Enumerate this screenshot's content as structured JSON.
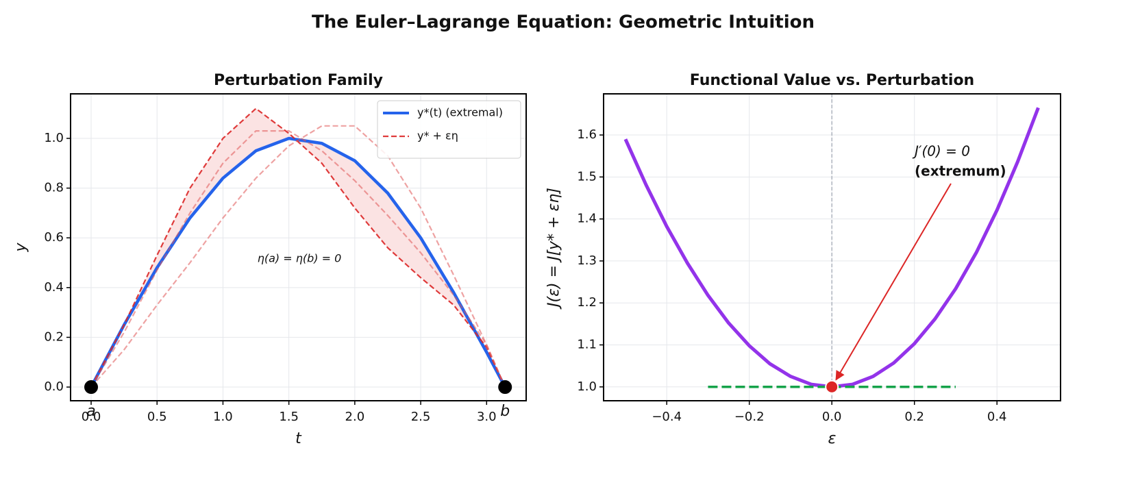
{
  "title": "The Euler–Lagrange Equation: Geometric Intuition",
  "chart_data": [
    {
      "type": "line",
      "title": "Perturbation Family",
      "xlabel": "t",
      "ylabel": "y",
      "xlim": [
        -0.156,
        3.3
      ],
      "ylim": [
        -0.055,
        1.179
      ],
      "xticks": [
        {
          "value": 0,
          "label": "0.0"
        },
        {
          "value": 0.5,
          "label": "0.5"
        },
        {
          "value": 1,
          "label": "1.0"
        },
        {
          "value": 1.5,
          "label": "1.5"
        },
        {
          "value": 2,
          "label": "2.0"
        },
        {
          "value": 2.5,
          "label": "2.5"
        },
        {
          "value": 3,
          "label": "3.0"
        }
      ],
      "yticks": [
        {
          "value": 0,
          "label": "0.0"
        },
        {
          "value": 0.2,
          "label": "0.2"
        },
        {
          "value": 0.4,
          "label": "0.4"
        },
        {
          "value": 0.6,
          "label": "0.6"
        },
        {
          "value": 0.8,
          "label": "0.8"
        },
        {
          "value": 1,
          "label": "1.0"
        }
      ],
      "grid": true,
      "legend": "upper right",
      "x": [
        0,
        0.25,
        0.5,
        0.75,
        1,
        1.25,
        1.5,
        1.75,
        2,
        2.25,
        2.5,
        2.75,
        3,
        3.14
      ],
      "series": [
        {
          "name": "y*(t) (extremal)",
          "color": "#2563eb",
          "style": "solid",
          "width": 4.5,
          "values": [
            0,
            0.25,
            0.48,
            0.68,
            0.84,
            0.95,
            1.0,
            0.98,
            0.91,
            0.78,
            0.6,
            0.38,
            0.14,
            0
          ]
        },
        {
          "name": "y* + εη",
          "color": "#dc2626",
          "style": "dashed",
          "width": 2.2,
          "opacity": 0.9,
          "fill_color": "#fbe3e3",
          "values": [
            0,
            0.25,
            0.53,
            0.8,
            1.0,
            1.12,
            1.02,
            0.9,
            0.72,
            0.56,
            0.44,
            0.33,
            0.16,
            0
          ]
        },
        {
          "color": "#e05555",
          "style": "dashed",
          "width": 2.2,
          "opacity": 0.55,
          "values": [
            0,
            0.22,
            0.47,
            0.7,
            0.9,
            1.03,
            1.03,
            0.95,
            0.83,
            0.69,
            0.54,
            0.37,
            0.17,
            0
          ]
        },
        {
          "color": "#e05555",
          "style": "dashed",
          "width": 2.2,
          "opacity": 0.55,
          "values": [
            0,
            0.15,
            0.33,
            0.5,
            0.68,
            0.84,
            0.97,
            1.05,
            1.05,
            0.93,
            0.72,
            0.45,
            0.17,
            0
          ]
        },
        {
          "color": "#000000",
          "mode": "markers",
          "x": [
            0,
            3.14
          ],
          "values": [
            0,
            0
          ],
          "point_labels": [
            "a",
            "b"
          ]
        }
      ],
      "annotations": [
        {
          "text": "η(a) = η(b) = 0",
          "color": "#6b7280"
        }
      ]
    },
    {
      "type": "line",
      "title": "Functional Value vs. Perturbation",
      "xlabel": "ε",
      "ylabel": "J(ε) = J[y* + εη]",
      "xlim": [
        -0.553,
        0.554
      ],
      "ylim": [
        0.967,
        1.698
      ],
      "xticks": [
        {
          "value": -0.4,
          "label": "−0.4"
        },
        {
          "value": -0.2,
          "label": "−0.2"
        },
        {
          "value": 0,
          "label": "0.0"
        },
        {
          "value": 0.2,
          "label": "0.2"
        },
        {
          "value": 0.4,
          "label": "0.4"
        }
      ],
      "yticks": [
        {
          "value": 1,
          "label": "1.0"
        },
        {
          "value": 1.1,
          "label": "1.1"
        },
        {
          "value": 1.2,
          "label": "1.2"
        },
        {
          "value": 1.3,
          "label": "1.3"
        },
        {
          "value": 1.4,
          "label": "1.4"
        },
        {
          "value": 1.5,
          "label": "1.5"
        },
        {
          "value": 1.6,
          "label": "1.6"
        }
      ],
      "grid": true,
      "vline": 0,
      "series": [
        {
          "color": "#9333ea",
          "style": "solid",
          "width": 5,
          "x": [
            -0.5,
            -0.45,
            -0.4,
            -0.35,
            -0.3,
            -0.25,
            -0.2,
            -0.15,
            -0.1,
            -0.05,
            0,
            0.05,
            0.1,
            0.15,
            0.2,
            0.25,
            0.3,
            0.35,
            0.4,
            0.45,
            0.5
          ],
          "values": [
            1.59,
            1.481,
            1.382,
            1.295,
            1.218,
            1.152,
            1.098,
            1.055,
            1.025,
            1.006,
            1,
            1.006,
            1.025,
            1.057,
            1.103,
            1.162,
            1.234,
            1.32,
            1.421,
            1.536,
            1.665
          ]
        },
        {
          "color": "#16a34a",
          "style": "dashed",
          "width": 3.5,
          "x": [
            -0.3,
            0.3
          ],
          "values": [
            1,
            1
          ]
        },
        {
          "color": "#dc2626",
          "mode": "markers",
          "edge": "#ffffff",
          "x": [
            0
          ],
          "values": [
            1
          ]
        }
      ],
      "annotations": [
        {
          "text": "J′(0) = 0",
          "color": "#dc2626"
        },
        {
          "text": "(extremum)",
          "color": "#dc2626",
          "bold": true
        }
      ]
    }
  ]
}
